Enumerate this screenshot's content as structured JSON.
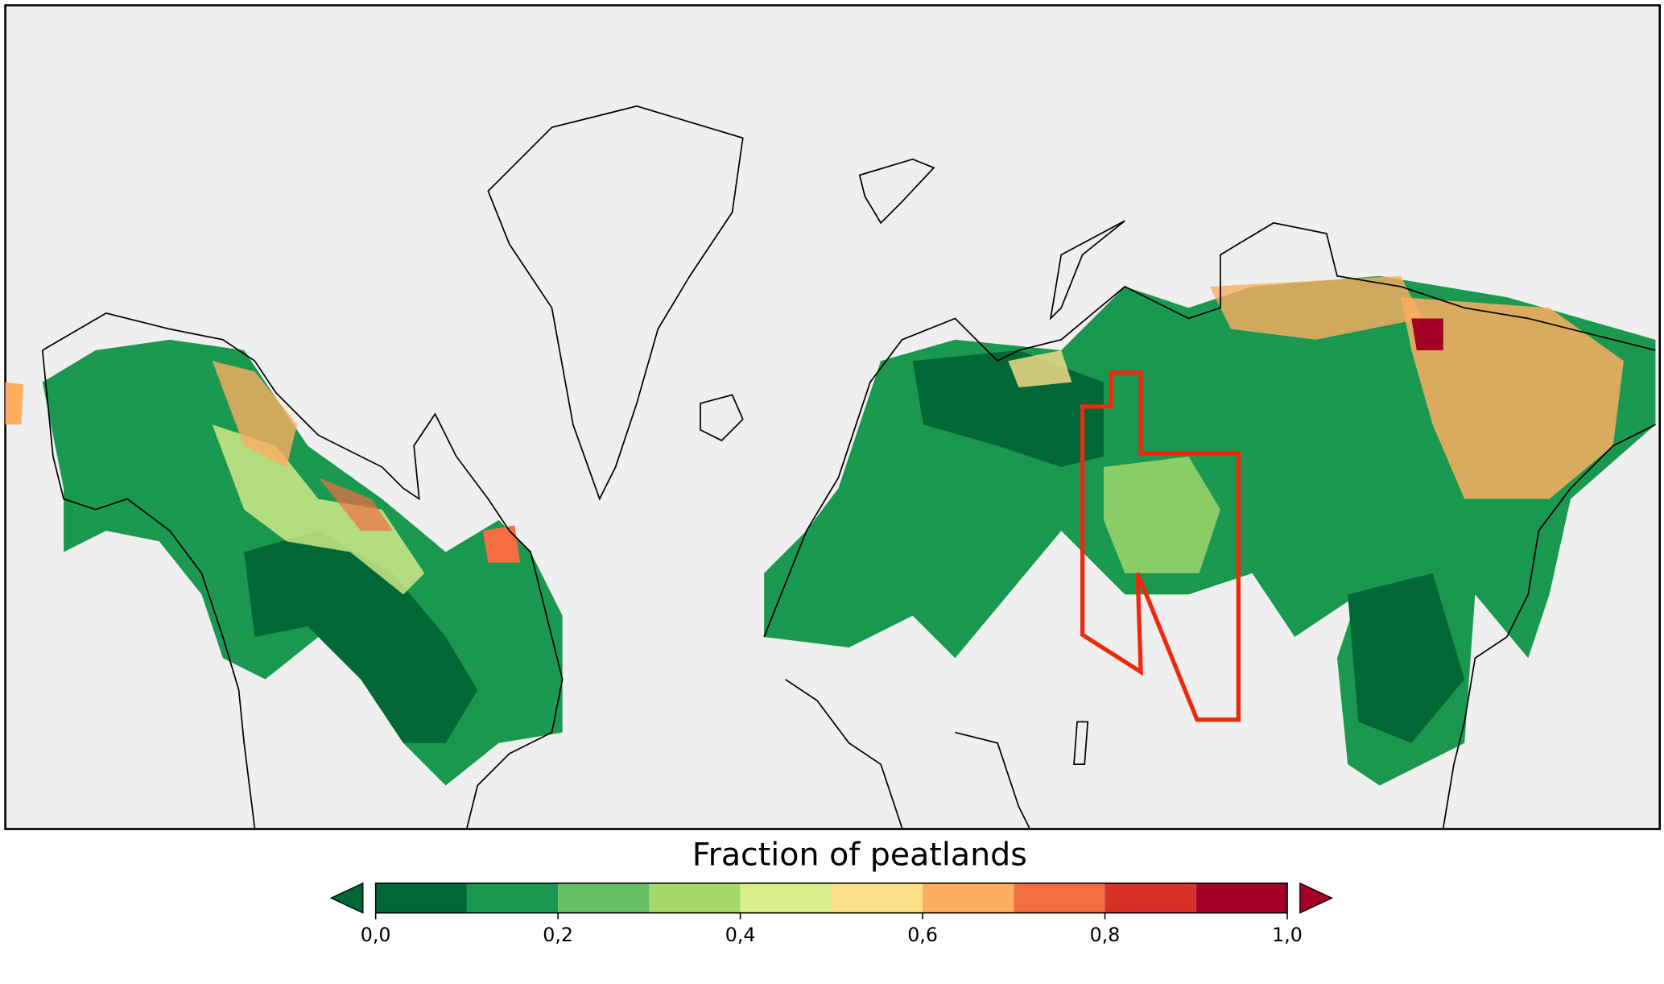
{
  "chart_data": {
    "type": "colorbar",
    "title": "Fraction of peatlands",
    "bounds": [
      0,
      0.1,
      0.2,
      0.3,
      0.4,
      0.5,
      0.6,
      0.7,
      0.8,
      0.9,
      1.0
    ],
    "colors": [
      "#006837",
      "#1a9850",
      "#66bd63",
      "#a6d96a",
      "#d9ef8b",
      "#fee08b",
      "#fdae61",
      "#f46d43",
      "#d73027",
      "#a50026"
    ],
    "xlim": [
      0,
      1.0
    ],
    "xticks": [
      {
        "value": 0,
        "label": "0,0"
      },
      {
        "value": 0.2,
        "label": "0,2"
      },
      {
        "value": 0.4,
        "label": "0,4"
      },
      {
        "value": 0.6,
        "label": "0,6"
      },
      {
        "value": 0.8,
        "label": "0,8"
      },
      {
        "value": 1.0,
        "label": "1,0"
      }
    ],
    "extend": "both"
  }
}
